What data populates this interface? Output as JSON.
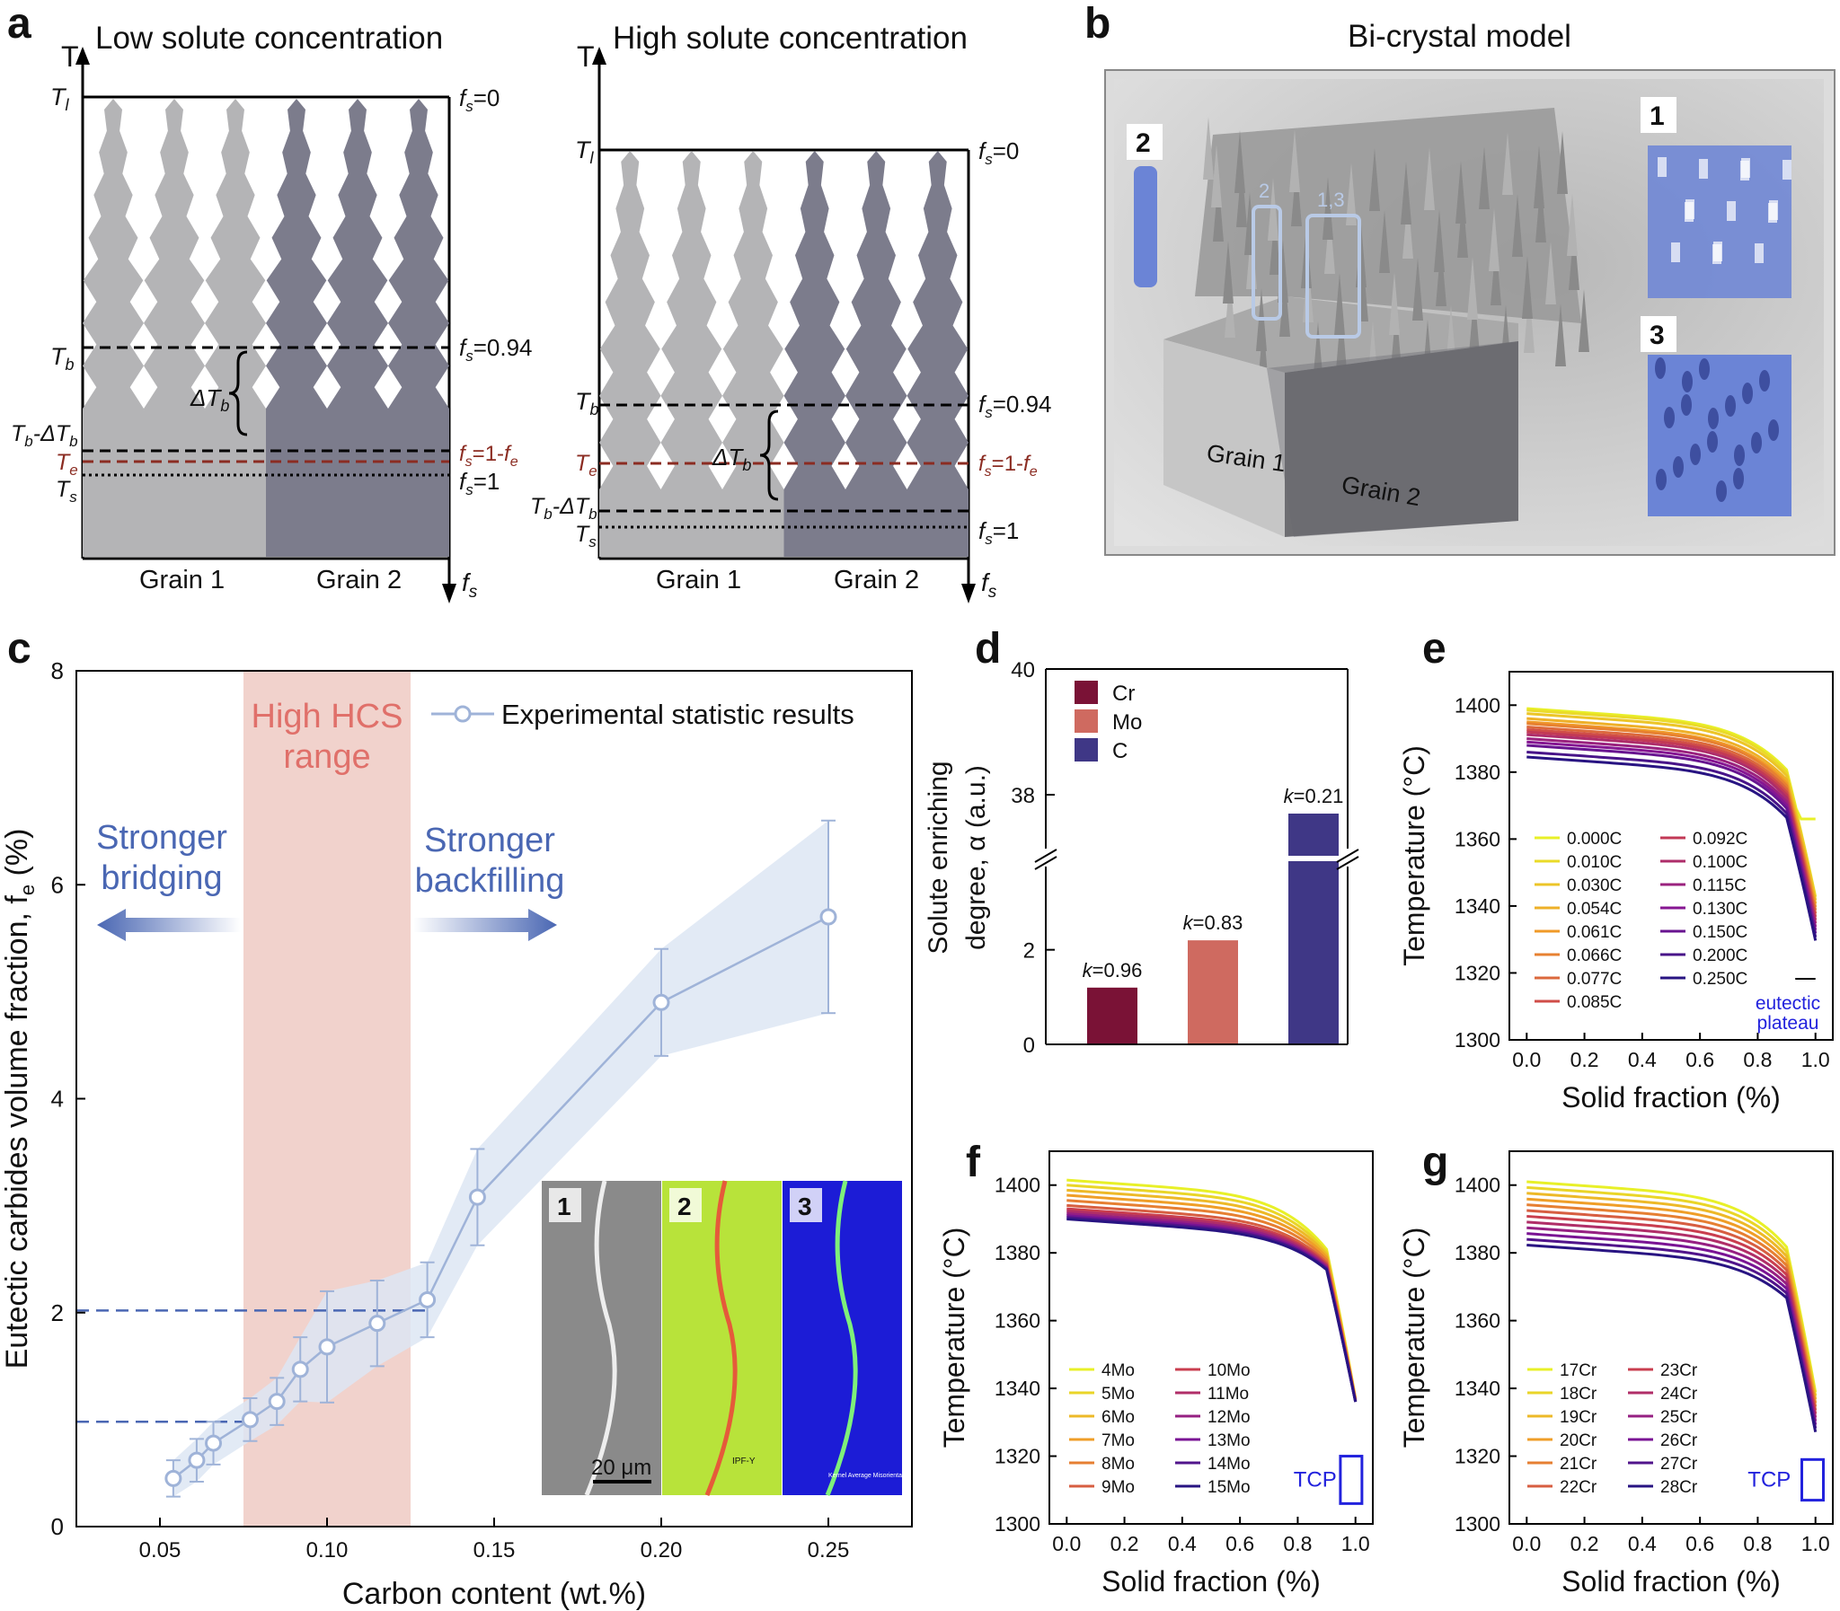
{
  "panel_a": {
    "letter": "a",
    "left": {
      "title": "Low solute concentration",
      "axis_t": "T",
      "axis_f": "f",
      "axis_f_sub": "s",
      "tl": "T",
      "tl_sub": "l",
      "tb": "T",
      "tb_sub": "b",
      "tbd": "T",
      "tbd_sub": "b",
      "tbd_mid": "-ΔT",
      "tbd_sub2": "b",
      "te": "T",
      "te_sub": "e",
      "ts": "T",
      "ts_sub": "s",
      "delta": "ΔT",
      "delta_sub": "b",
      "fs0": "=0",
      "fs094": "=0.94",
      "fs1fe": "=1-",
      "fs1": "=1",
      "grain1": "Grain 1",
      "grain2": "Grain 2"
    },
    "right": {
      "title": "High solute concentration",
      "grain1": "Grain 1",
      "grain2": "Grain 2"
    }
  },
  "panel_b": {
    "letter": "b",
    "title": "Bi-crystal model",
    "grain1": "Grain 1",
    "grain2": "Grain 2",
    "box_labels": [
      "2",
      "1,3"
    ],
    "inset_labels": [
      "2",
      "1",
      "3"
    ]
  },
  "panel_c": {
    "letter": "c"
  },
  "panel_d": {
    "letter": "d"
  },
  "panel_e": {
    "letter": "e"
  },
  "panel_f": {
    "letter": "f"
  },
  "panel_g": {
    "letter": "g"
  },
  "chart_data": [
    {
      "id": "c",
      "type": "line",
      "xlabel": "Carbon content (wt.%)",
      "ylabel": "Eutectic carbides volume fraction, f",
      "ylabel_sub": "e",
      "ylabel_unit": " (%)",
      "xlim": [
        0.025,
        0.275
      ],
      "ylim": [
        0,
        8
      ],
      "xticks": [
        0.05,
        0.1,
        0.15,
        0.2,
        0.25
      ],
      "xtick_labels": [
        "0.05",
        "0.10",
        "0.15",
        "0.20",
        "0.25"
      ],
      "yticks": [
        0,
        2,
        4,
        6,
        8
      ],
      "ytick_labels": [
        "0",
        "2",
        "4",
        "6",
        "8"
      ],
      "series": [
        {
          "name": "Experimental statistic results",
          "x": [
            0.054,
            0.061,
            0.066,
            0.077,
            0.085,
            0.092,
            0.1,
            0.115,
            0.13,
            0.145,
            0.2,
            0.25
          ],
          "y": [
            0.45,
            0.62,
            0.78,
            1.0,
            1.17,
            1.47,
            1.68,
            1.9,
            2.12,
            3.08,
            4.9,
            5.7
          ],
          "err": [
            0.17,
            0.2,
            0.2,
            0.2,
            0.22,
            0.3,
            0.52,
            0.4,
            0.35,
            0.45,
            0.5,
            0.9
          ]
        }
      ],
      "shaded_range": {
        "x": [
          0.075,
          0.125
        ],
        "label_line1": "High HCS",
        "label_line2": "range"
      },
      "dashed_levels": [
        2.02,
        0.98
      ],
      "annotations": {
        "left_line1": "Stronger",
        "left_line2": "bridging",
        "right_line1": "Stronger",
        "right_line2": "backfilling"
      },
      "inset": {
        "labels": [
          "1",
          "2",
          "3"
        ],
        "scale_bar": "20 μm",
        "ipf": "IPF-Y",
        "kernel": "Kernel Average Misorientation"
      },
      "colors": {
        "series": "#9fb3d8",
        "band": "#dde6f3",
        "hcs": "#f0cdc7",
        "hcs_text": "#e0706a",
        "arrow": "#4a67b3"
      }
    },
    {
      "id": "d",
      "type": "bar",
      "ylabel_line1": "Solute enriching",
      "ylabel_line2": "degree, α (a.u.)",
      "categories": [
        "Cr",
        "Mo",
        "C"
      ],
      "values": [
        1.2,
        2.2,
        37.7
      ],
      "k_labels": [
        "=0.96",
        "=0.83",
        "=0.21"
      ],
      "k_prefix": "k",
      "yticks_lower": [
        "0",
        "2"
      ],
      "yticks_upper": [
        "38",
        "40"
      ],
      "axis_break": true,
      "colors": [
        "#7a1236",
        "#cf6a60",
        "#3f3786"
      ]
    },
    {
      "id": "e",
      "type": "line",
      "xlabel": "Solid fraction (%)",
      "ylabel": "Temperature (°C)",
      "xlim": [
        -0.06,
        1.06
      ],
      "ylim": [
        1300,
        1410
      ],
      "xtick_labels": [
        "0.0",
        "0.2",
        "0.4",
        "0.6",
        "0.8",
        "1.0"
      ],
      "ytick_labels": [
        "1300",
        "1320",
        "1340",
        "1360",
        "1380",
        "1400"
      ],
      "series_names": [
        "0.000C",
        "0.010C",
        "0.030C",
        "0.054C",
        "0.061C",
        "0.066C",
        "0.077C",
        "0.085C",
        "0.092C",
        "0.100C",
        "0.115C",
        "0.130C",
        "0.150C",
        "0.200C",
        "0.250C"
      ],
      "start_temps": [
        1399,
        1398.5,
        1397.5,
        1396,
        1395,
        1394.5,
        1393.5,
        1392.7,
        1392,
        1391.2,
        1390,
        1389,
        1388,
        1386,
        1384.5
      ],
      "annotation_line1": "eutectic",
      "annotation_line2": "plateau"
    },
    {
      "id": "f",
      "type": "line",
      "xlabel": "Solid fraction (%)",
      "ylabel": "Temperature (°C)",
      "xlim": [
        -0.06,
        1.06
      ],
      "ylim": [
        1300,
        1410
      ],
      "xtick_labels": [
        "0.0",
        "0.2",
        "0.4",
        "0.6",
        "0.8",
        "1.0"
      ],
      "ytick_labels": [
        "1300",
        "1320",
        "1340",
        "1360",
        "1380",
        "1400"
      ],
      "series_names": [
        "4Mo",
        "5Mo",
        "6Mo",
        "7Mo",
        "8Mo",
        "9Mo",
        "10Mo",
        "11Mo",
        "12Mo",
        "13Mo",
        "14Mo",
        "15Mo"
      ],
      "start_temps": [
        1401.5,
        1400,
        1398.5,
        1397,
        1395.5,
        1394,
        1393,
        1392.3,
        1391.6,
        1391,
        1390.5,
        1390
      ],
      "annotation": "TCP"
    },
    {
      "id": "g",
      "type": "line",
      "xlabel": "Solid fraction (%)",
      "ylabel": "Temperature (°C)",
      "xlim": [
        -0.06,
        1.06
      ],
      "ylim": [
        1300,
        1410
      ],
      "xtick_labels": [
        "0.0",
        "0.2",
        "0.4",
        "0.6",
        "0.8",
        "1.0"
      ],
      "ytick_labels": [
        "1300",
        "1320",
        "1340",
        "1360",
        "1380",
        "1400"
      ],
      "series_names": [
        "17Cr",
        "18Cr",
        "19Cr",
        "20Cr",
        "21Cr",
        "22Cr",
        "23Cr",
        "24Cr",
        "25Cr",
        "26Cr",
        "27Cr",
        "28Cr"
      ],
      "start_temps": [
        1401,
        1399.3,
        1397.6,
        1395.9,
        1394.2,
        1392.5,
        1390.8,
        1389.1,
        1387.4,
        1385.7,
        1384,
        1382.3
      ],
      "annotation": "TCP"
    }
  ]
}
